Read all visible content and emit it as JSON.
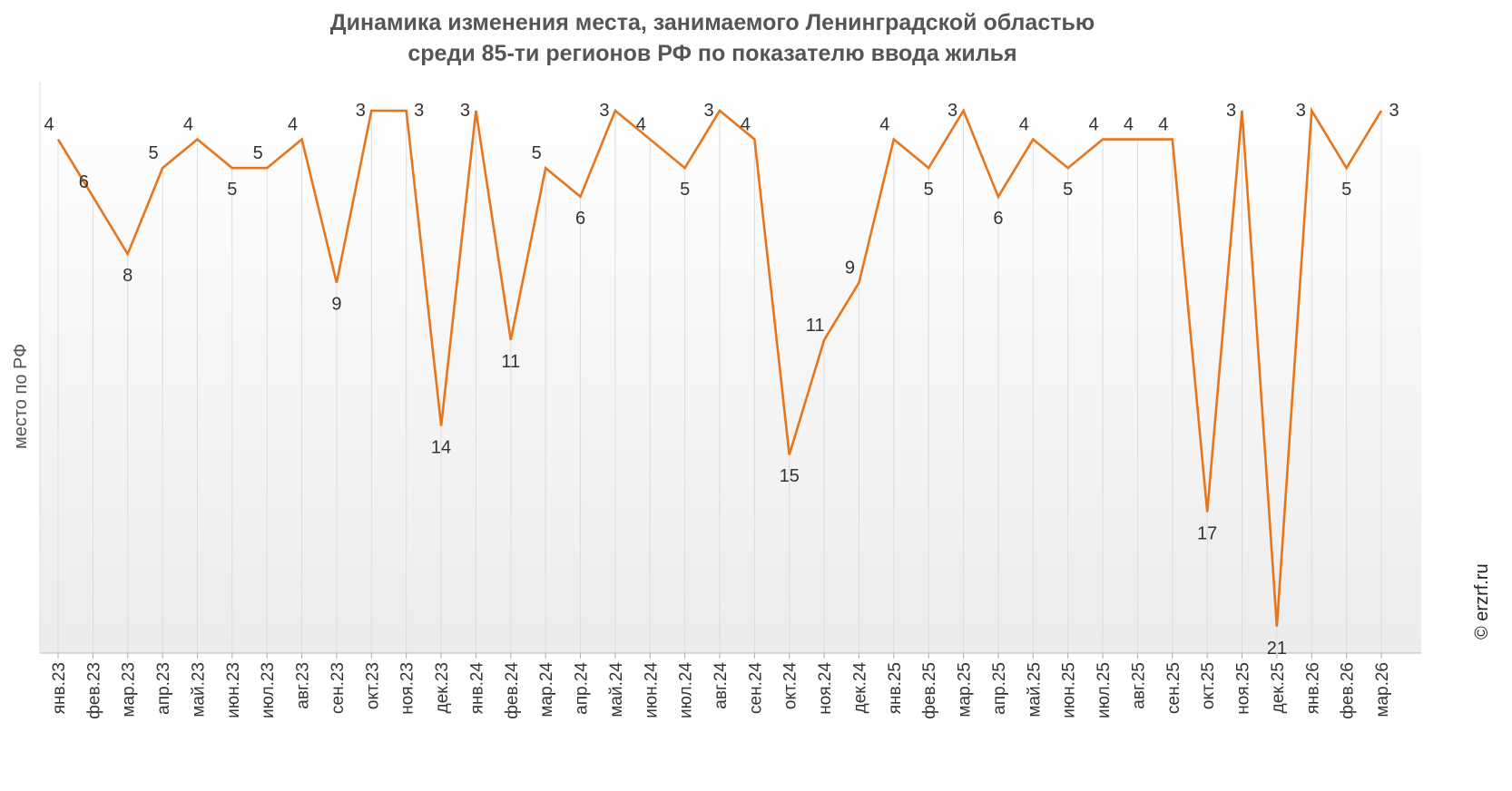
{
  "chart_data": {
    "type": "line",
    "title_line1": "Динамика изменения места, занимаемого Ленинградской областью",
    "title_line2": "среди 85-ти регионов РФ по показателю ввода жилья",
    "ylabel": "место по РФ",
    "xlabel": "",
    "y_reversed": true,
    "ylim": [
      22,
      2
    ],
    "grid": "vertical",
    "line_color": "#e8751a",
    "categories": [
      "янв.23",
      "фев.23",
      "мар.23",
      "апр.23",
      "май.23",
      "июн.23",
      "июл.23",
      "авг.23",
      "сен.23",
      "окт.23",
      "ноя.23",
      "дек.23",
      "янв.24",
      "фев.24",
      "мар.24",
      "апр.24",
      "май.24",
      "июн.24",
      "июл.24",
      "авг.24",
      "сен.24",
      "окт.24",
      "ноя.24",
      "дек.24",
      "янв.25",
      "фев.25",
      "мар.25",
      "апр.25",
      "май.25",
      "июн.25",
      "июл.25",
      "авг.25",
      "сен.25",
      "окт.25",
      "ноя.25",
      "дек.25",
      "янв.26",
      "фев.26",
      "мар.26"
    ],
    "values": [
      4,
      6,
      8,
      5,
      4,
      5,
      5,
      4,
      9,
      3,
      3,
      14,
      3,
      11,
      5,
      6,
      3,
      4,
      5,
      3,
      4,
      15,
      11,
      9,
      4,
      5,
      3,
      6,
      4,
      5,
      4,
      4,
      4,
      17,
      3,
      21,
      3,
      5,
      3
    ]
  },
  "watermark": "© erzrf.ru"
}
